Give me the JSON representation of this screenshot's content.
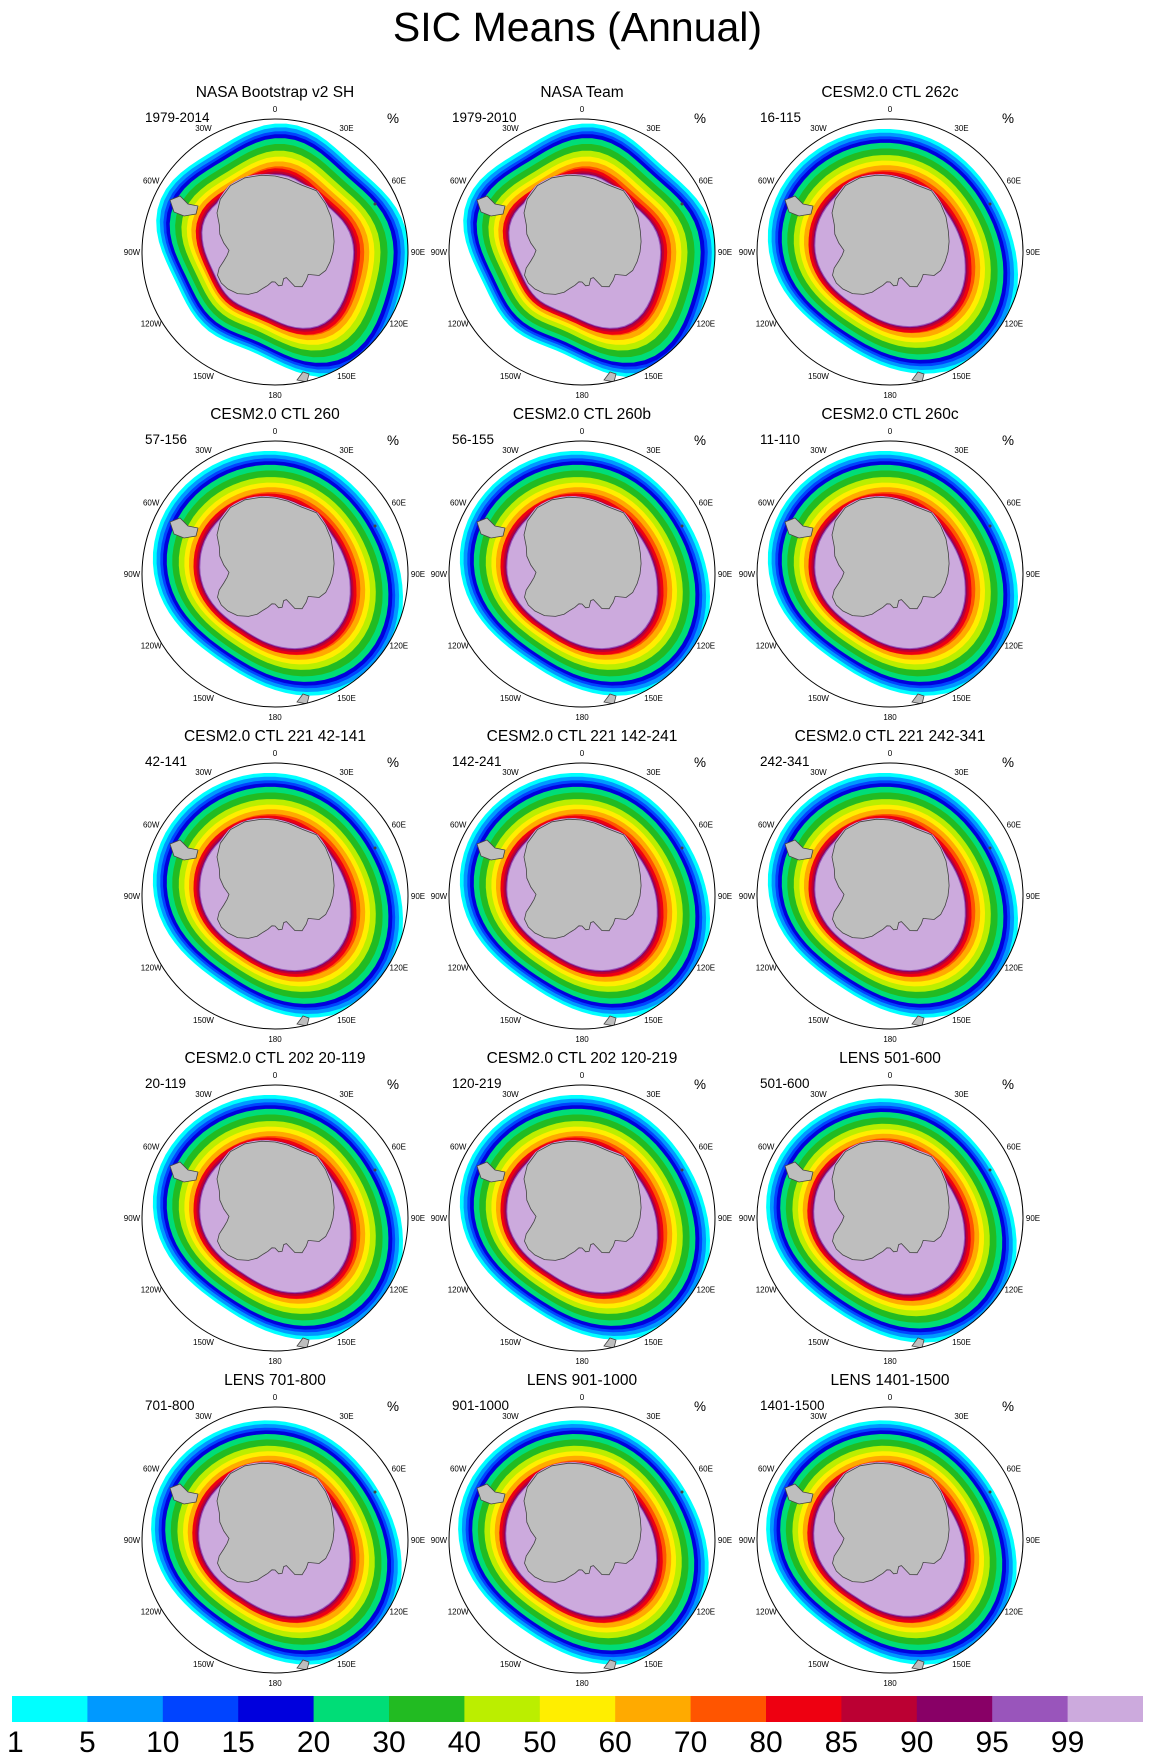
{
  "title": "SIC Means (Annual)",
  "units": "%",
  "longitude_labels": [
    "0",
    "30E",
    "60E",
    "90E",
    "120E",
    "150E",
    "180",
    "150W",
    "120W",
    "90W",
    "60W",
    "30W"
  ],
  "panels": [
    {
      "title": "NASA Bootstrap v2 SH",
      "years": "1979-2014",
      "variant": "obs1"
    },
    {
      "title": "NASA Team",
      "years": "1979-2010",
      "variant": "obs2"
    },
    {
      "title": "CESM2.0 CTL 262c",
      "years": "16-115",
      "variant": "model"
    },
    {
      "title": "CESM2.0 CTL 260",
      "years": "57-156",
      "variant": "model"
    },
    {
      "title": "CESM2.0 CTL 260b",
      "years": "56-155",
      "variant": "model"
    },
    {
      "title": "CESM2.0 CTL 260c",
      "years": "11-110",
      "variant": "model"
    },
    {
      "title": "CESM2.0 CTL 221 42-141",
      "years": "42-141",
      "variant": "model"
    },
    {
      "title": "CESM2.0 CTL 221 142-241",
      "years": "142-241",
      "variant": "model"
    },
    {
      "title": "CESM2.0 CTL 221 242-341",
      "years": "242-341",
      "variant": "model"
    },
    {
      "title": "CESM2.0 CTL 202 20-119",
      "years": "20-119",
      "variant": "model"
    },
    {
      "title": "CESM2.0 CTL 202 120-219",
      "years": "120-219",
      "variant": "model"
    },
    {
      "title": "LENS 501-600",
      "years": "501-600",
      "variant": "lens"
    },
    {
      "title": "LENS 701-800",
      "years": "701-800",
      "variant": "lens"
    },
    {
      "title": "LENS 901-1000",
      "years": "901-1000",
      "variant": "lens"
    },
    {
      "title": "LENS 1401-1500",
      "years": "1401-1500",
      "variant": "lens"
    }
  ],
  "colorbar": {
    "labels": [
      "1",
      "5",
      "10",
      "15",
      "20",
      "30",
      "40",
      "50",
      "60",
      "70",
      "80",
      "85",
      "90",
      "95",
      "99"
    ],
    "colors": [
      "#00ffff",
      "#0099ff",
      "#0044ff",
      "#0000dd",
      "#00dd77",
      "#22bb22",
      "#bbee00",
      "#ffee00",
      "#ffaa00",
      "#ff5500",
      "#ee0011",
      "#bb0033",
      "#880066",
      "#9955bb",
      "#ccaadd"
    ]
  },
  "map_colors": {
    "land": "#bebebe",
    "land_edge": "#444444",
    "circle_edge": "#000000"
  }
}
